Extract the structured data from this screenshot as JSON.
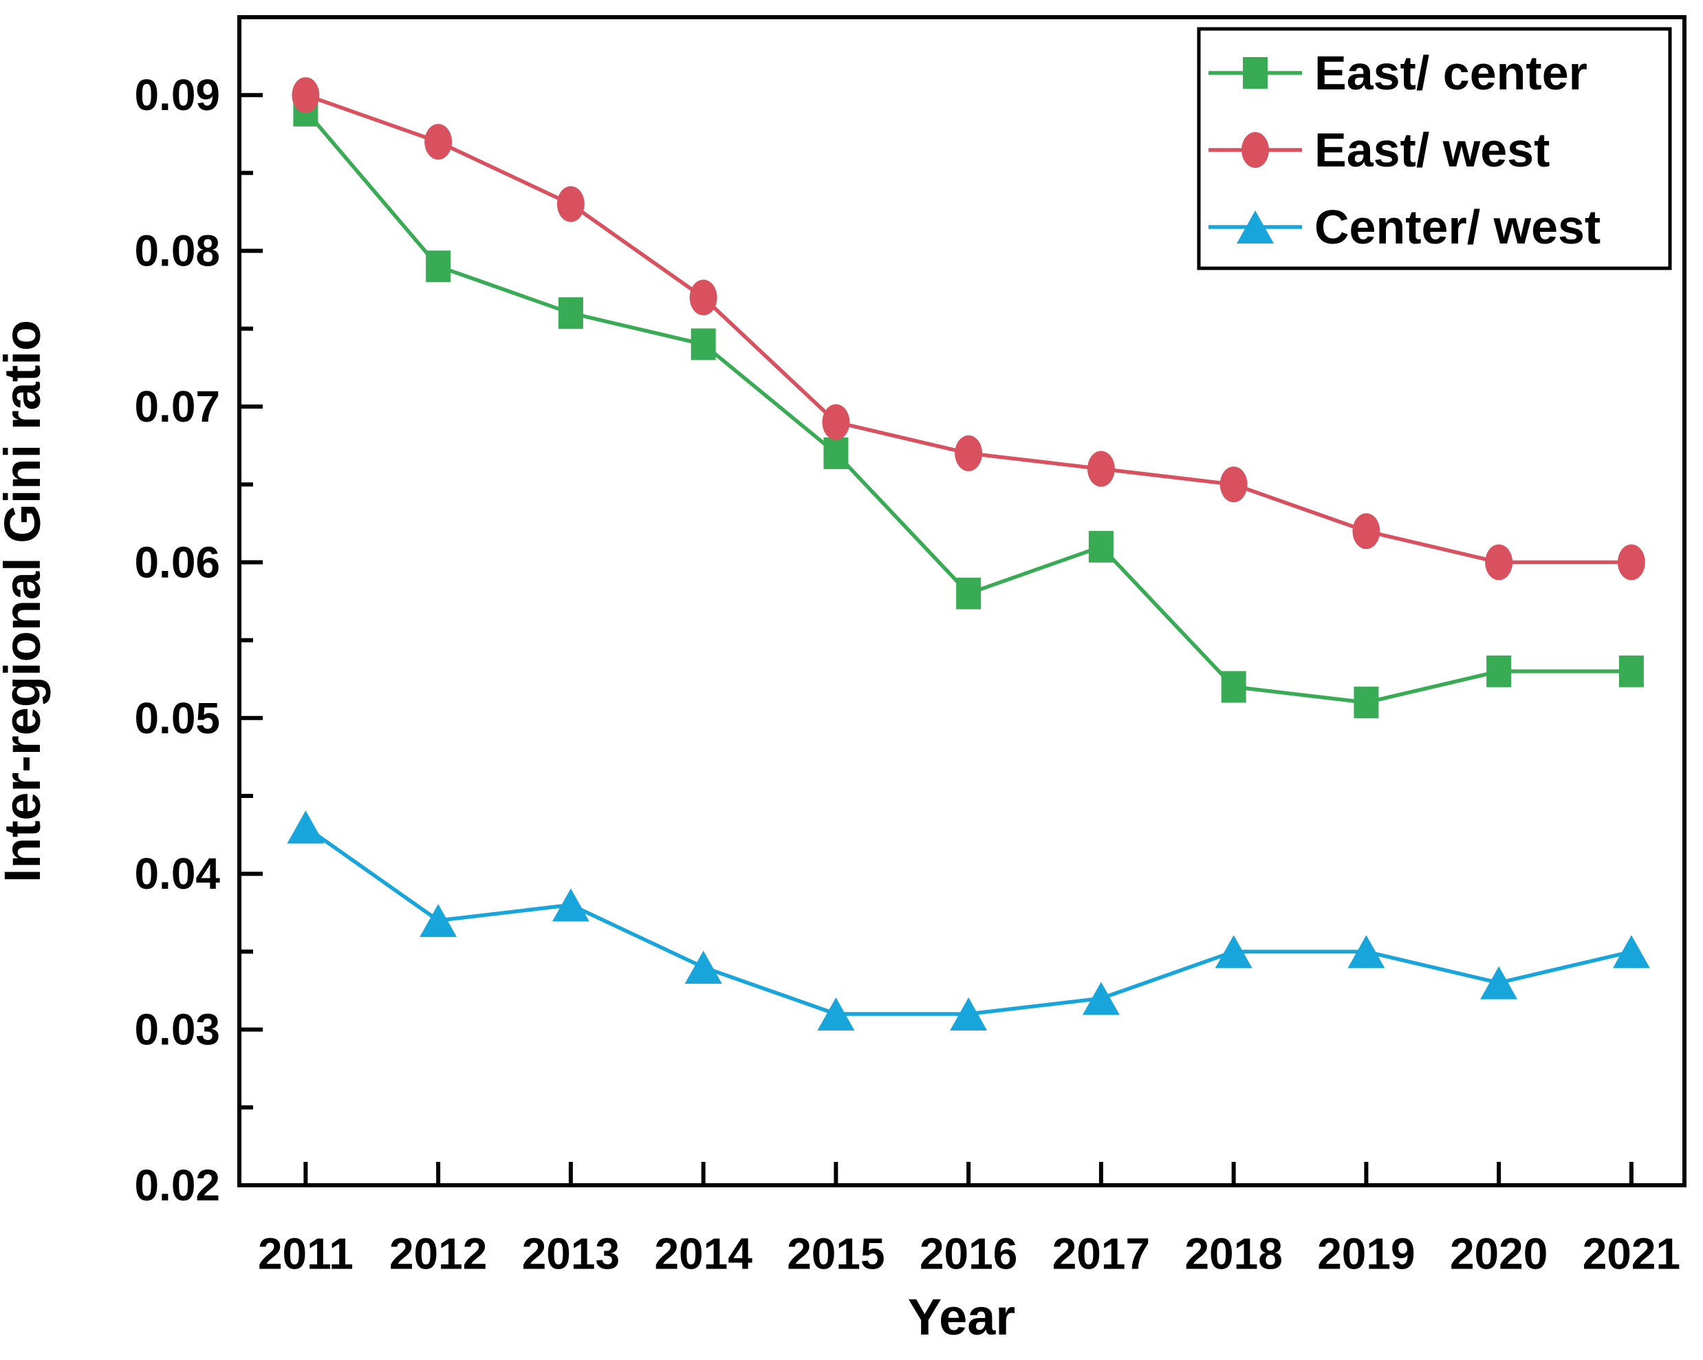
{
  "chart_data": {
    "type": "line",
    "title": "",
    "xlabel": "Year",
    "ylabel": "Inter-regional Gini ratio",
    "x": [
      2011,
      2012,
      2013,
      2014,
      2015,
      2016,
      2017,
      2018,
      2019,
      2020,
      2021
    ],
    "x_tick_labels": [
      "2011",
      "2012",
      "2013",
      "2014",
      "2015",
      "2016",
      "2017",
      "2018",
      "2019",
      "2020",
      "2021"
    ],
    "y_major_ticks": [
      0.02,
      0.03,
      0.04,
      0.05,
      0.06,
      0.07,
      0.08,
      0.09
    ],
    "y_tick_labels": [
      "0.02",
      "0.03",
      "0.04",
      "0.05",
      "0.06",
      "0.07",
      "0.08",
      "0.09"
    ],
    "y_minor_ticks": [
      0.025,
      0.035,
      0.045,
      0.055,
      0.065,
      0.075,
      0.085
    ],
    "xlim": [
      2010.5,
      2021.4
    ],
    "ylim": [
      0.02,
      0.095
    ],
    "grid": "off",
    "legend_position": "top-right",
    "background_color": "#ffffff",
    "frame_color": "#000000",
    "series": [
      {
        "name": "East/ center",
        "marker": "square",
        "color": "#3aab55",
        "values": [
          0.089,
          0.079,
          0.076,
          0.074,
          0.067,
          0.058,
          0.061,
          0.052,
          0.051,
          0.053,
          0.053
        ]
      },
      {
        "name": "East/ west",
        "marker": "circle",
        "color": "#d9505e",
        "values": [
          0.09,
          0.087,
          0.083,
          0.077,
          0.069,
          0.067,
          0.066,
          0.065,
          0.062,
          0.06,
          0.06
        ]
      },
      {
        "name": "Center/ west",
        "marker": "triangle",
        "color": "#17a5dc",
        "values": [
          0.043,
          0.037,
          0.038,
          0.034,
          0.031,
          0.031,
          0.032,
          0.035,
          0.035,
          0.033,
          0.035
        ]
      }
    ]
  }
}
